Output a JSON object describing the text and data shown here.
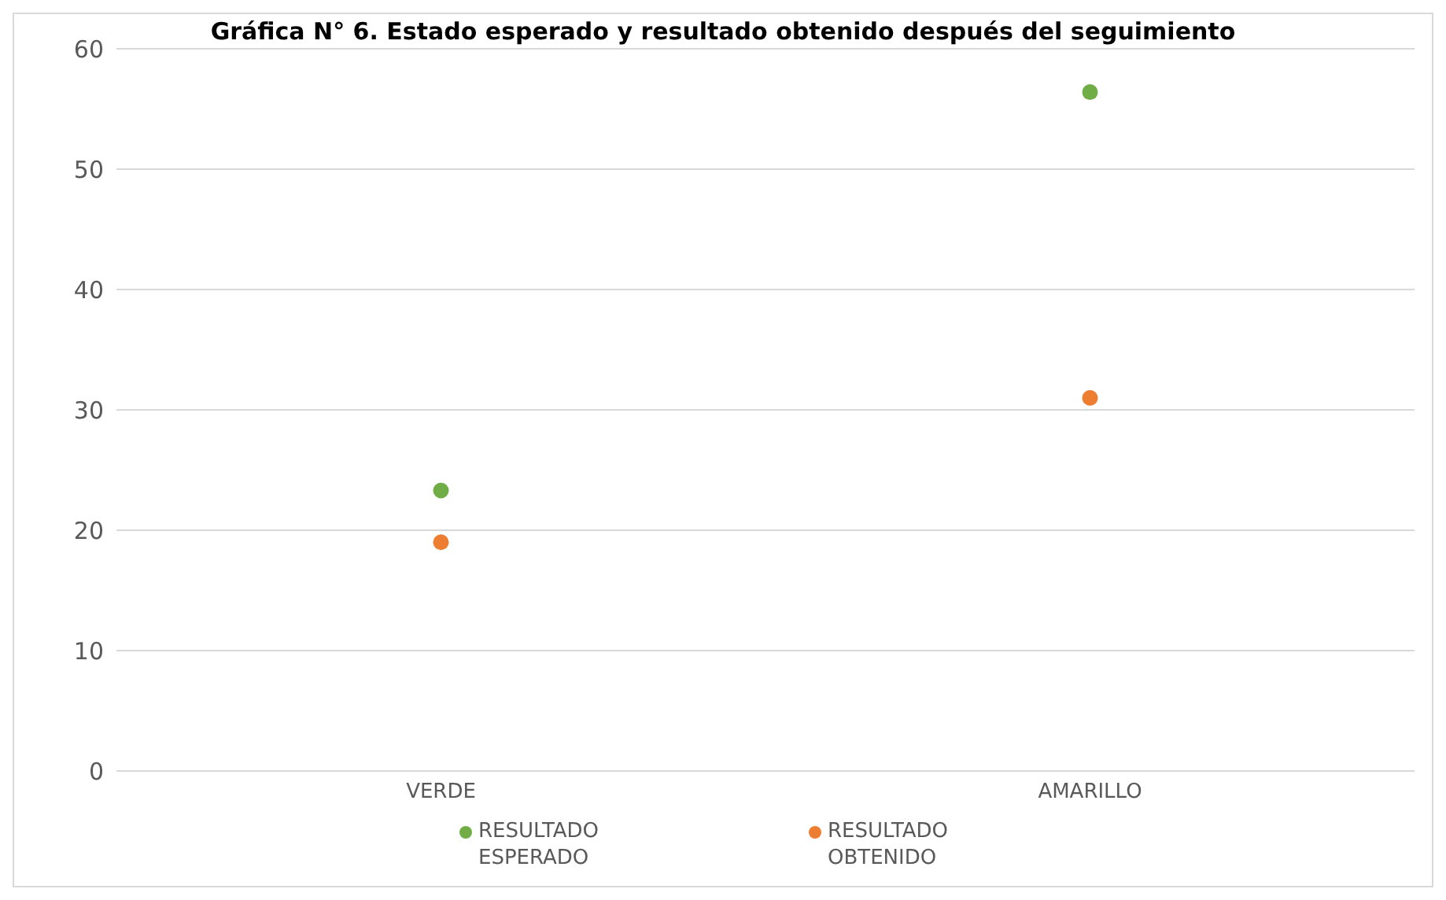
{
  "chart_data": {
    "type": "scatter",
    "title": "Gráfica N° 6. Estado esperado y resultado obtenido después del seguimiento",
    "categories": [
      "VERDE",
      "AMARILLO"
    ],
    "series": [
      {
        "name": "RESULTADO ESPERADO",
        "color": "#70ad47",
        "values": [
          23.3,
          56.4
        ]
      },
      {
        "name": "RESULTADO OBTENIDO",
        "color": "#ed7d31",
        "values": [
          19.0,
          31.0
        ]
      }
    ],
    "ylim": [
      0,
      60
    ],
    "yticks": [
      0,
      10,
      20,
      30,
      40,
      50,
      60
    ],
    "grid": "y",
    "legend": "bottom",
    "marker": "circle"
  }
}
